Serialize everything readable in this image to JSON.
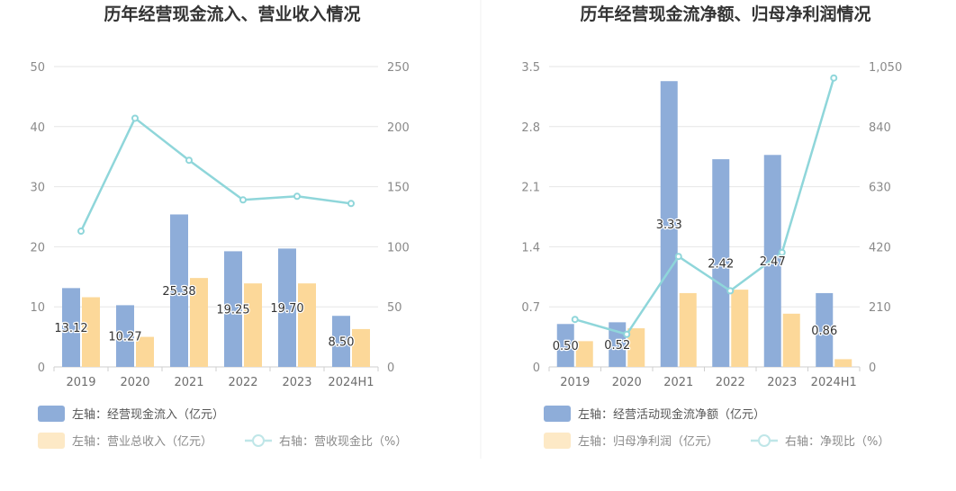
{
  "chart_data": [
    {
      "type": "bar",
      "title": "历年经营现金流入、营业收入情况",
      "categories": [
        "2019",
        "2020",
        "2021",
        "2022",
        "2023",
        "2024H1"
      ],
      "y_left": {
        "min": 0,
        "max": 50,
        "ticks": [
          "0",
          "10",
          "20",
          "30",
          "40",
          "50"
        ]
      },
      "y_right": {
        "min": 0,
        "max": 250,
        "ticks": [
          "0",
          "50",
          "100",
          "150",
          "200",
          "250"
        ]
      },
      "series": [
        {
          "name": "左轴：经营现金流入（亿元）",
          "kind": "bar",
          "axis": "left",
          "color": "#8eadd9",
          "values": [
            13.12,
            10.27,
            25.38,
            19.25,
            19.7,
            8.5
          ],
          "labels": [
            "13.12",
            "10.27",
            "25.38",
            "19.25",
            "19.70",
            "8.50"
          ]
        },
        {
          "name": "左轴：营业总收入（亿元）",
          "kind": "bar",
          "axis": "left",
          "color": "#fcd899",
          "values": [
            11.6,
            5.0,
            14.8,
            13.9,
            13.9,
            6.3
          ]
        },
        {
          "name": "右轴：营收现金比（%）",
          "kind": "line",
          "axis": "right",
          "color": "#8fd6da",
          "values": [
            113,
            207,
            172,
            139,
            142,
            136
          ]
        }
      ],
      "legend_position": "bottom-left",
      "grid": true
    },
    {
      "type": "bar",
      "title": "历年经营现金流净额、归母净利润情况",
      "categories": [
        "2019",
        "2020",
        "2021",
        "2022",
        "2023",
        "2024H1"
      ],
      "y_left": {
        "min": 0,
        "max": 3.5,
        "ticks": [
          "0",
          "0.7",
          "1.4",
          "2.1",
          "2.8",
          "3.5"
        ]
      },
      "y_right": {
        "min": 0,
        "max": 1050,
        "ticks": [
          "0",
          "210",
          "420",
          "630",
          "840",
          "1,050"
        ]
      },
      "series": [
        {
          "name": "左轴：经营活动现金流净额（亿元）",
          "kind": "bar",
          "axis": "left",
          "color": "#8eadd9",
          "values": [
            0.5,
            0.52,
            3.33,
            2.42,
            2.47,
            0.86
          ],
          "labels": [
            "0.50",
            "0.52",
            "3.33",
            "2.42",
            "2.47",
            "0.86"
          ]
        },
        {
          "name": "左轴：归母净利润（亿元）",
          "kind": "bar",
          "axis": "left",
          "color": "#fcd899",
          "values": [
            0.3,
            0.45,
            0.86,
            0.9,
            0.62,
            0.09
          ]
        },
        {
          "name": "右轴：净现比（%）",
          "kind": "line",
          "axis": "right",
          "color": "#8fd6da",
          "values": [
            166,
            114,
            386,
            266,
            400,
            1010
          ]
        }
      ],
      "legend_position": "bottom-left",
      "grid": true
    }
  ]
}
